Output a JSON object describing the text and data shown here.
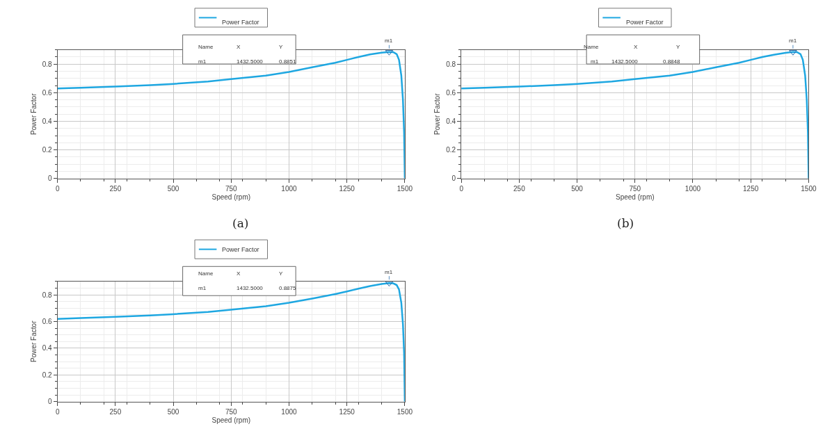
{
  "chart_data": [
    {
      "type": "line",
      "title": "(a)",
      "xlabel": "Speed (rpm)",
      "ylabel": "Power Factor",
      "xlim": [
        0,
        1500
      ],
      "xticks": [
        0,
        250,
        500,
        750,
        1000,
        1250,
        1500
      ],
      "ylim": [
        0,
        0.9
      ],
      "yticks": [
        0.0,
        0.2,
        0.4,
        0.6,
        0.8
      ],
      "grid": true,
      "legend": "top",
      "marker": "none",
      "series": [
        {
          "name": "Power Factor",
          "color": "#1ea7e1",
          "x": [
            0,
            100,
            250,
            400,
            500,
            650,
            750,
            900,
            1000,
            1100,
            1200,
            1250,
            1300,
            1350,
            1400,
            1432.5,
            1450,
            1465,
            1475,
            1485,
            1492,
            1497,
            1500
          ],
          "values": [
            0.63,
            0.635,
            0.643,
            0.653,
            0.662,
            0.678,
            0.695,
            0.72,
            0.745,
            0.778,
            0.81,
            0.83,
            0.85,
            0.868,
            0.88,
            0.885,
            0.884,
            0.87,
            0.83,
            0.72,
            0.55,
            0.32,
            0.0
          ]
        }
      ],
      "annotations": [
        "m1",
        "Name",
        "X",
        "Y",
        "m1",
        "1432.5000",
        "0.8851"
      ]
    },
    {
      "type": "line",
      "title": "(b)",
      "xlabel": "Speed (rpm)",
      "ylabel": "Power Factor",
      "xlim": [
        0,
        1500
      ],
      "xticks": [
        0,
        250,
        500,
        750,
        1000,
        1250,
        1500
      ],
      "ylim": [
        0,
        0.9
      ],
      "yticks": [
        0.0,
        0.2,
        0.4,
        0.6,
        0.8
      ],
      "grid": true,
      "legend": "top",
      "marker": "none",
      "series": [
        {
          "name": "Power Factor",
          "color": "#1ea7e1",
          "x": [
            0,
            100,
            250,
            400,
            500,
            650,
            750,
            900,
            1000,
            1100,
            1200,
            1250,
            1300,
            1350,
            1400,
            1432.5,
            1450,
            1465,
            1475,
            1485,
            1492,
            1497,
            1500
          ],
          "values": [
            0.63,
            0.635,
            0.643,
            0.653,
            0.662,
            0.678,
            0.695,
            0.72,
            0.745,
            0.778,
            0.81,
            0.83,
            0.85,
            0.866,
            0.879,
            0.885,
            0.884,
            0.87,
            0.83,
            0.72,
            0.55,
            0.32,
            0.0
          ]
        }
      ],
      "annotations": [
        "m1",
        "Name",
        "X",
        "Y",
        "m1",
        "1432.5000",
        "0.8848"
      ]
    },
    {
      "type": "line",
      "xlabel": "Speed (rpm)",
      "ylabel": "Power Factor",
      "xlim": [
        0,
        1500
      ],
      "xticks": [
        0,
        250,
        500,
        750,
        1000,
        1250,
        1500
      ],
      "ylim": [
        0,
        0.9
      ],
      "yticks": [
        0.0,
        0.2,
        0.4,
        0.6,
        0.8
      ],
      "grid": true,
      "legend": "top",
      "marker": "none",
      "series": [
        {
          "name": "Power Factor",
          "color": "#1ea7e1",
          "x": [
            0,
            100,
            250,
            400,
            500,
            650,
            750,
            900,
            1000,
            1100,
            1200,
            1250,
            1300,
            1350,
            1400,
            1432.5,
            1450,
            1465,
            1475,
            1485,
            1492,
            1497,
            1500
          ],
          "values": [
            0.62,
            0.626,
            0.635,
            0.646,
            0.655,
            0.672,
            0.688,
            0.715,
            0.74,
            0.772,
            0.806,
            0.825,
            0.846,
            0.866,
            0.881,
            0.888,
            0.886,
            0.873,
            0.84,
            0.74,
            0.58,
            0.36,
            0.0
          ]
        }
      ],
      "annotations": [
        "m1",
        "Name",
        "X",
        "Y",
        "m1",
        "1432.5000",
        "0.8875"
      ]
    }
  ]
}
